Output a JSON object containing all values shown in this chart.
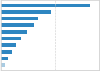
{
  "values": [
    310000,
    175000,
    130000,
    115000,
    90000,
    70000,
    52000,
    38000,
    25000,
    15000
  ],
  "bar_color": "#2e86c1",
  "bar_color_last": "#a9cce3",
  "background_color": "#f2f2f2",
  "plot_background": "#ffffff",
  "xlim": [
    0,
    340000
  ],
  "bar_height": 0.55,
  "num_bars": 10,
  "border_color": "#cccccc"
}
